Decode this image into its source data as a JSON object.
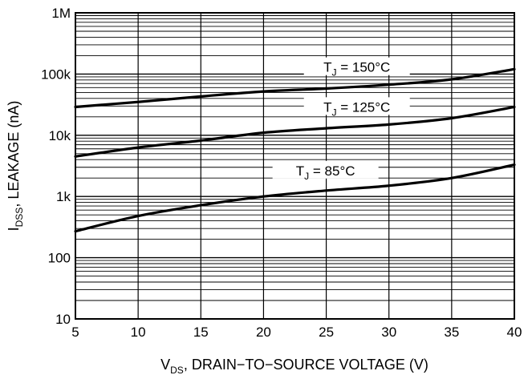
{
  "chart_data": {
    "type": "line",
    "title": "",
    "xlabel": {
      "main": "V",
      "sub": "DS",
      "rest": ", DRAIN−TO−SOURCE VOLTAGE (V)"
    },
    "ylabel": {
      "main": "I",
      "sub": "DSS",
      "rest": ", LEAKAGE (nA)"
    },
    "x": [
      5,
      10,
      15,
      20,
      25,
      30,
      35,
      40
    ],
    "xlim": [
      5,
      40
    ],
    "ylim": [
      10,
      1000000
    ],
    "yscale": "log",
    "grid": true,
    "x_ticks": [
      "5",
      "10",
      "15",
      "20",
      "25",
      "30",
      "35",
      "40"
    ],
    "y_ticks": [
      "10",
      "100",
      "1k",
      "10k",
      "100k",
      "1M"
    ],
    "series": [
      {
        "name": {
          "main": "T",
          "sub": "J",
          "rest": " = 150°C"
        },
        "values": [
          29000,
          35000,
          43000,
          52000,
          58000,
          67000,
          82000,
          120000
        ]
      },
      {
        "name": {
          "main": "T",
          "sub": "J",
          "rest": " = 125°C"
        },
        "values": [
          4500,
          6300,
          8200,
          11000,
          13000,
          15000,
          19000,
          29000
        ]
      },
      {
        "name": {
          "main": "T",
          "sub": "J",
          "rest": " = 85°C"
        },
        "values": [
          270,
          480,
          720,
          1000,
          1250,
          1500,
          2000,
          3300
        ]
      }
    ]
  }
}
